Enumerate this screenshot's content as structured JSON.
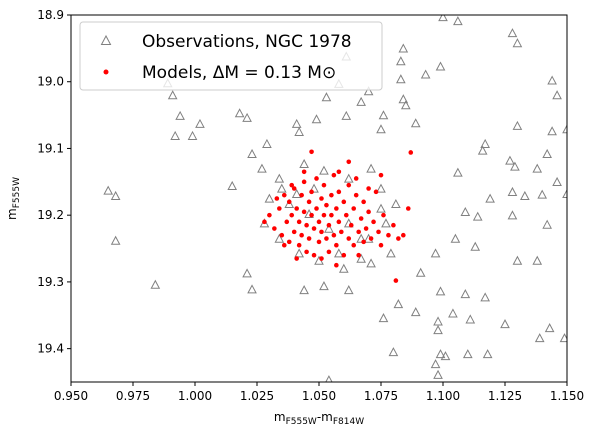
{
  "chart_data": {
    "type": "scatter",
    "x_label": [
      "m",
      "F555W",
      "-m",
      "F814W"
    ],
    "y_label": [
      "m",
      "F555W"
    ],
    "xlim": [
      0.95,
      1.15
    ],
    "ylim": [
      19.45,
      18.9
    ],
    "xticks": [
      {
        "value": 0.95,
        "label": "0.950"
      },
      {
        "value": 0.975,
        "label": "0.975"
      },
      {
        "value": 1.0,
        "label": "1.000"
      },
      {
        "value": 1.025,
        "label": "1.025"
      },
      {
        "value": 1.05,
        "label": "1.050"
      },
      {
        "value": 1.075,
        "label": "1.075"
      },
      {
        "value": 1.1,
        "label": "1.100"
      },
      {
        "value": 1.125,
        "label": "1.125"
      },
      {
        "value": 1.15,
        "label": "1.150"
      }
    ],
    "yticks": [
      18.9,
      {
        "value": 19.0,
        "label": "19.0"
      },
      19.1,
      19.2,
      19.3,
      19.4
    ],
    "legend": "upper left",
    "series": [
      {
        "name": "Observations, NGC 1978",
        "color": "#808080",
        "marker": "triangle-open",
        "x": [
          0.965,
          0.968,
          0.968,
          0.984,
          0.989,
          0.991,
          0.992,
          0.994,
          0.999,
          1.002,
          1.015,
          1.018,
          1.021,
          1.023,
          1.021,
          1.1,
          1.106,
          1.128,
          1.13,
          1.084,
          1.099,
          1.093,
          1.144,
          1.146,
          1.13,
          1.116,
          1.15,
          1.144,
          1.142,
          1.127,
          1.129,
          1.117,
          1.106,
          1.128,
          1.138,
          1.14,
          1.146,
          1.15,
          1.133,
          1.119,
          1.109,
          1.114,
          1.142,
          1.128,
          1.105,
          1.113,
          1.13,
          1.138,
          1.097,
          1.091,
          1.099,
          1.109,
          1.117,
          1.082,
          1.089,
          1.104,
          1.098,
          1.111,
          1.125,
          1.143,
          1.139,
          1.076,
          1.08,
          1.098,
          1.099,
          1.11,
          1.118,
          1.101,
          1.097,
          1.098,
          1.054,
          1.149,
          1.067,
          1.083,
          1.084,
          1.076,
          1.075,
          1.085,
          1.089,
          1.07,
          1.058,
          1.053,
          1.041,
          1.042,
          1.049,
          1.061,
          1.023,
          1.029,
          1.061,
          1.083,
          1.027,
          1.034,
          1.044,
          1.052,
          1.062,
          1.071,
          1.075,
          1.081,
          1.077,
          1.067,
          1.058,
          1.05,
          1.042,
          1.034,
          1.028,
          1.03,
          1.038,
          1.046,
          1.054,
          1.062,
          1.07,
          1.06,
          1.067,
          1.079,
          1.044,
          1.062,
          1.052,
          1.071,
          1.035,
          1.041,
          1.048,
          1.075
        ],
        "values": [
          19.164,
          19.172,
          19.239,
          19.305,
          19.003,
          19.021,
          19.082,
          19.052,
          19.082,
          19.064,
          19.157,
          19.048,
          19.288,
          19.312,
          19.055,
          18.904,
          18.91,
          18.928,
          18.943,
          18.951,
          18.978,
          18.99,
          18.999,
          19.021,
          19.067,
          19.104,
          19.072,
          19.075,
          19.109,
          19.119,
          19.128,
          19.094,
          19.137,
          19.166,
          19.131,
          19.17,
          19.151,
          19.169,
          19.172,
          19.176,
          19.196,
          19.203,
          19.215,
          19.201,
          19.236,
          19.248,
          19.269,
          19.269,
          19.258,
          19.287,
          19.315,
          19.319,
          19.324,
          19.334,
          19.346,
          19.348,
          19.36,
          19.357,
          19.364,
          19.37,
          19.385,
          19.355,
          19.406,
          19.373,
          19.409,
          19.409,
          19.409,
          19.412,
          19.424,
          19.44,
          19.448,
          19.385,
          19.031,
          18.997,
          19.027,
          19.051,
          19.072,
          19.036,
          19.063,
          19.015,
          19.004,
          19.024,
          19.064,
          19.076,
          19.057,
          19.052,
          19.109,
          19.094,
          18.963,
          18.97,
          19.131,
          19.146,
          19.124,
          19.134,
          19.146,
          19.131,
          19.161,
          19.184,
          19.213,
          19.236,
          19.258,
          19.269,
          19.258,
          19.236,
          19.213,
          19.176,
          19.184,
          19.199,
          19.221,
          19.213,
          19.236,
          19.281,
          19.266,
          19.258,
          19.313,
          19.313,
          19.307,
          19.273,
          19.161,
          19.169,
          19.161,
          19.191
        ]
      },
      {
        "name": "Models, ΔM = 0.13 M⊙",
        "color": "#ff0000",
        "marker": "dot",
        "x": [
          1.03,
          1.032,
          1.034,
          1.035,
          1.036,
          1.037,
          1.038,
          1.038,
          1.039,
          1.04,
          1.04,
          1.041,
          1.042,
          1.042,
          1.043,
          1.043,
          1.044,
          1.044,
          1.045,
          1.045,
          1.046,
          1.046,
          1.047,
          1.047,
          1.048,
          1.048,
          1.049,
          1.049,
          1.05,
          1.05,
          1.051,
          1.051,
          1.052,
          1.052,
          1.053,
          1.053,
          1.054,
          1.054,
          1.055,
          1.055,
          1.056,
          1.056,
          1.057,
          1.057,
          1.058,
          1.058,
          1.059,
          1.06,
          1.06,
          1.061,
          1.062,
          1.062,
          1.063,
          1.064,
          1.064,
          1.065,
          1.066,
          1.067,
          1.068,
          1.068,
          1.069,
          1.07,
          1.071,
          1.072,
          1.073,
          1.074,
          1.075,
          1.076,
          1.078,
          1.08,
          1.082,
          1.084,
          1.086,
          1.028,
          1.033,
          1.036,
          1.041,
          1.044,
          1.051,
          1.058,
          1.065,
          1.07,
          1.057,
          1.066,
          1.039,
          1.047,
          1.087,
          1.081,
          1.062,
          1.075
        ],
        "values": [
          19.2,
          19.22,
          19.19,
          19.23,
          19.17,
          19.21,
          19.24,
          19.18,
          19.2,
          19.16,
          19.225,
          19.19,
          19.21,
          19.245,
          19.17,
          19.23,
          19.195,
          19.15,
          19.215,
          19.255,
          19.18,
          19.235,
          19.2,
          19.165,
          19.22,
          19.26,
          19.19,
          19.145,
          19.21,
          19.24,
          19.175,
          19.225,
          19.2,
          19.155,
          19.235,
          19.185,
          19.215,
          19.255,
          19.17,
          19.2,
          19.23,
          19.14,
          19.19,
          19.245,
          19.21,
          19.165,
          19.225,
          19.18,
          19.26,
          19.2,
          19.235,
          19.155,
          19.215,
          19.19,
          19.245,
          19.17,
          19.225,
          19.205,
          19.24,
          19.18,
          19.22,
          19.195,
          19.235,
          19.21,
          19.165,
          19.225,
          19.245,
          19.2,
          19.23,
          19.215,
          19.235,
          19.23,
          19.19,
          19.21,
          19.175,
          19.245,
          19.265,
          19.135,
          19.265,
          19.135,
          19.145,
          19.16,
          19.275,
          19.26,
          19.155,
          19.105,
          19.106,
          19.298,
          19.12,
          19.14
        ]
      }
    ]
  }
}
